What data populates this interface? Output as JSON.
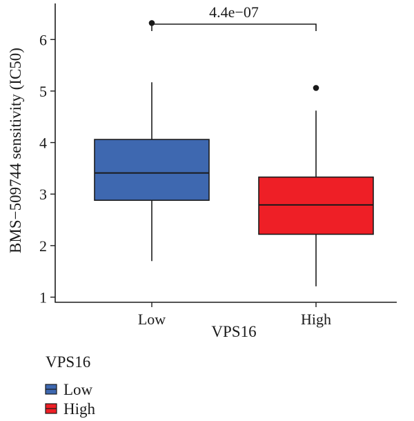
{
  "chart_data": {
    "type": "box",
    "xlabel": "VPS16",
    "ylabel": "BMS−509744 sensitivity (IC50)",
    "categories": [
      "Low",
      "High"
    ],
    "ylim": [
      0.9,
      6.7
    ],
    "yticks": [
      1,
      2,
      3,
      4,
      5,
      6
    ],
    "grid": false,
    "boxes": [
      {
        "name": "Low",
        "color": "#3e68b0",
        "whisker_low": 1.7,
        "q1": 2.88,
        "median": 3.41,
        "q3": 4.06,
        "whisker_high": 5.17,
        "outliers": [
          6.32
        ]
      },
      {
        "name": "High",
        "color": "#ee1f26",
        "whisker_low": 1.21,
        "q1": 2.22,
        "median": 2.79,
        "q3": 3.33,
        "whisker_high": 4.62,
        "outliers": [
          5.06
        ]
      }
    ],
    "comparison": {
      "label": "4.4e−07",
      "from": "Low",
      "to": "High"
    },
    "legend": {
      "title": "VPS16",
      "position": "bottom-left",
      "items": [
        {
          "label": "Low",
          "color": "#3e68b0"
        },
        {
          "label": "High",
          "color": "#ee1f26"
        }
      ]
    }
  }
}
